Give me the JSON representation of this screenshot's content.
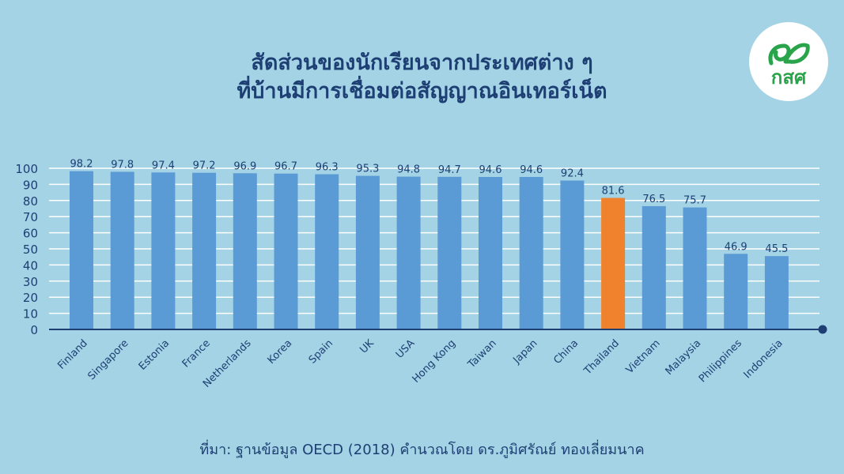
{
  "title": {
    "line1": "สัดส่วนของนักเรียนจากประเทศต่าง ๆ",
    "line2": "ที่บ้านมีการเชื่อมต่อสัญญาณอินเทอร์เน็ต"
  },
  "logo": {
    "text": "กสศ",
    "icon": "sprout-leaf-icon",
    "color": "#2aa44a"
  },
  "source": "ที่มา: ฐานข้อมูล OECD (2018) คำนวณโดย ดร.ภูมิศรัณย์ ทองเลี่ยมนาค",
  "chart_data": {
    "type": "bar",
    "categories": [
      "Finland",
      "Singapore",
      "Estonia",
      "France",
      "Netherlands",
      "Korea",
      "Spain",
      "UK",
      "USA",
      "Hong Kong",
      "Taiwan",
      "Japan",
      "China",
      "Thailand",
      "Vietnam",
      "Malaysia",
      "Philippines",
      "Indonesia"
    ],
    "values": [
      98.2,
      97.8,
      97.4,
      97.2,
      96.9,
      96.7,
      96.3,
      95.3,
      94.8,
      94.7,
      94.6,
      94.6,
      92.4,
      81.6,
      76.5,
      75.7,
      46.9,
      45.5
    ],
    "value_labels": [
      "98.2",
      "97.8",
      "97.4",
      "97.2",
      "96.9",
      "96.7",
      "96.3",
      "95.3",
      "94.8",
      "94.7",
      "94.6",
      "94.6",
      "92.4",
      "81.6",
      "76.5",
      "75.7",
      "46.9",
      "45.5"
    ],
    "yticks": [
      "0",
      "10",
      "20",
      "30",
      "40",
      "50",
      "60",
      "70",
      "80",
      "90",
      "100"
    ],
    "ylim": [
      0,
      100
    ],
    "highlight": "Thailand",
    "grid": true,
    "colors": {
      "bar": "#5b9bd5",
      "highlight": "#f0822e",
      "grid": "#ffffff",
      "axis": "#1e3f73",
      "text": "#1e3f73"
    }
  }
}
